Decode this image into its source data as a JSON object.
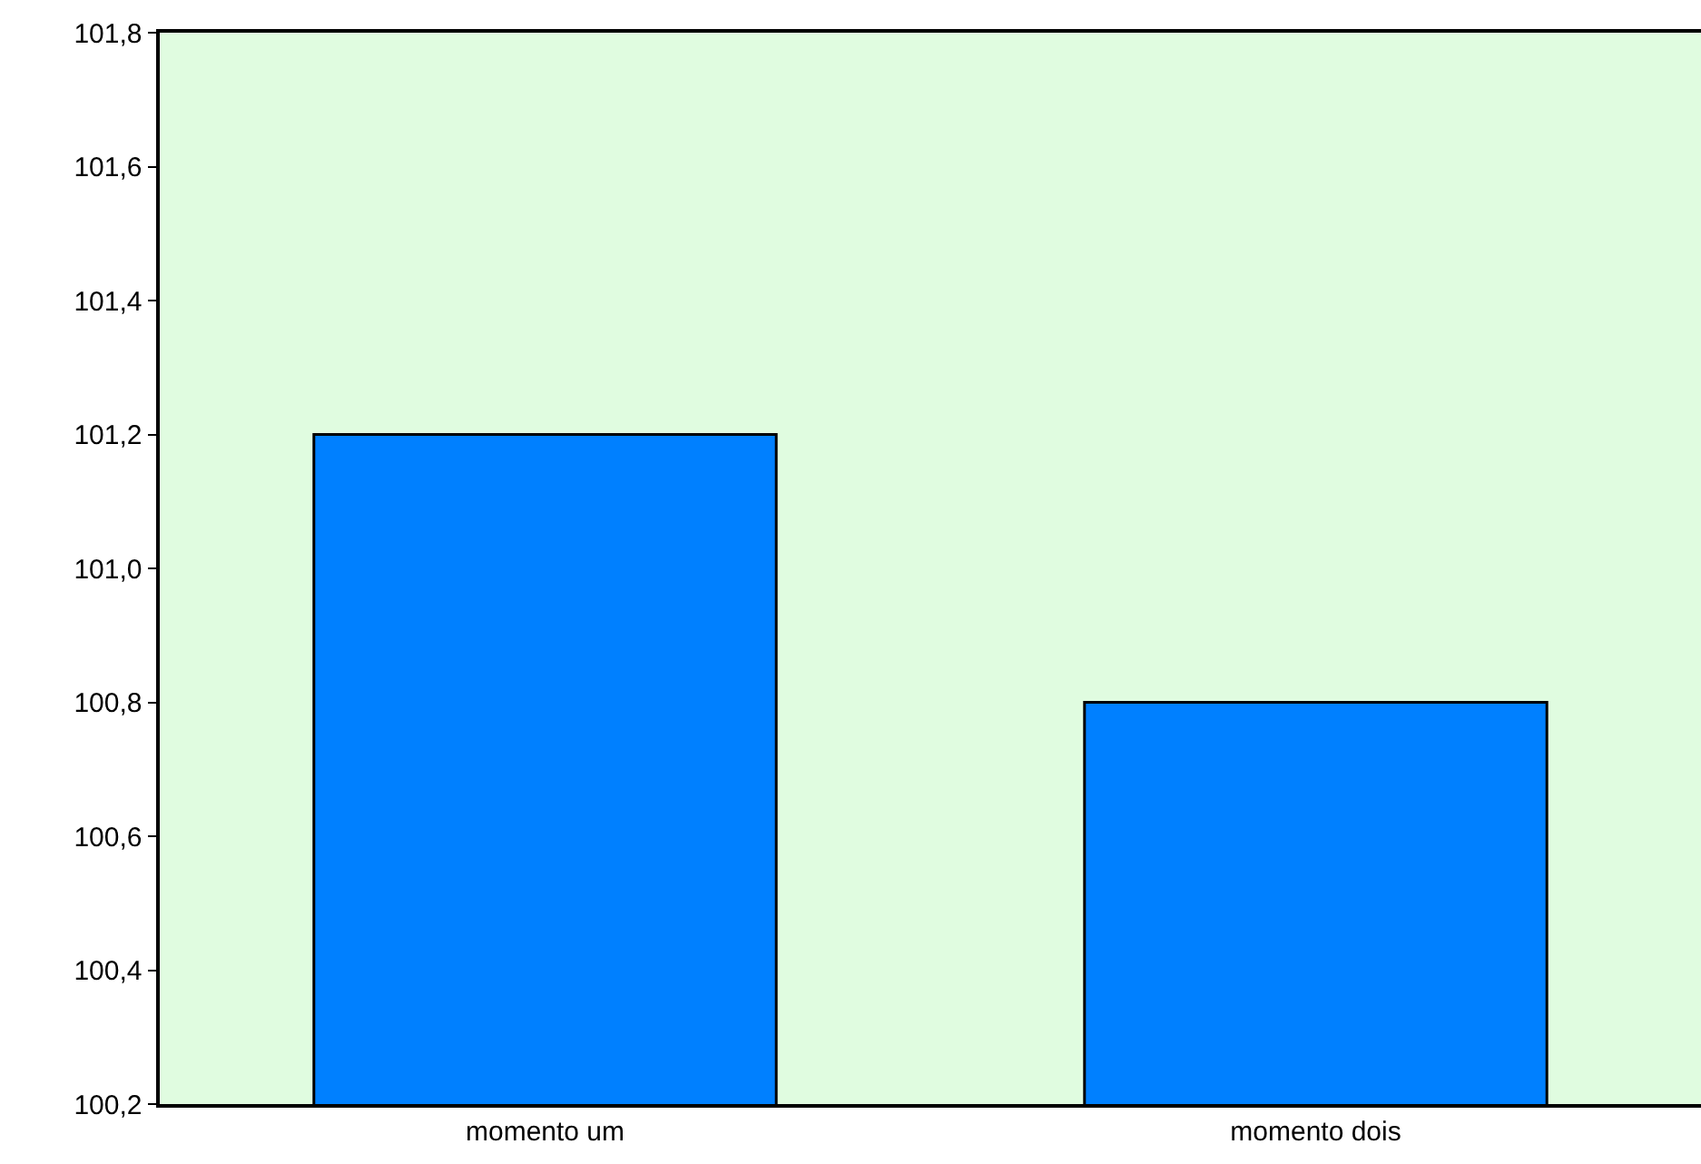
{
  "chart_data": {
    "type": "bar",
    "categories": [
      "momento um",
      "momento dois"
    ],
    "values": [
      101.2,
      100.8
    ],
    "color": "#0080ff",
    "ylim": [
      100.2,
      101.8
    ],
    "yticks": [
      {
        "value": 100.2,
        "label": "100,2"
      },
      {
        "value": 100.4,
        "label": "100,4"
      },
      {
        "value": 100.6,
        "label": "100,6"
      },
      {
        "value": 100.8,
        "label": "100,8"
      },
      {
        "value": 101.0,
        "label": "101,0"
      },
      {
        "value": 101.2,
        "label": "101,2"
      },
      {
        "value": 101.4,
        "label": "101,4"
      },
      {
        "value": 101.6,
        "label": "101,6"
      },
      {
        "value": 101.8,
        "label": "101,8"
      }
    ],
    "grid": false
  }
}
